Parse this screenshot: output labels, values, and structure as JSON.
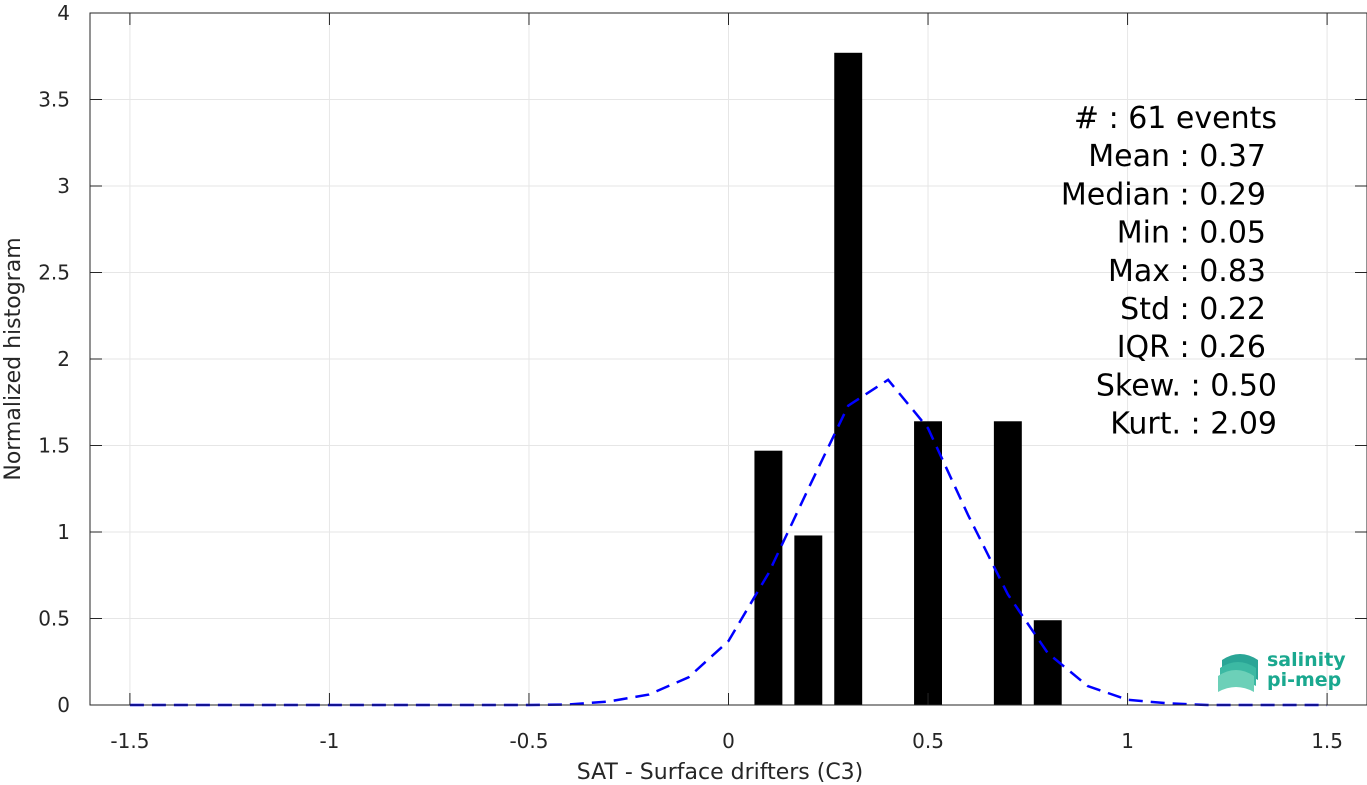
{
  "chart_data": {
    "type": "bar",
    "xlabel": "SAT - Surface drifters (C3)",
    "ylabel": "Normalized histogram",
    "xlim": [
      -1.6,
      1.6
    ],
    "ylim": [
      0,
      4
    ],
    "xticks": [
      -1.5,
      -1,
      -0.5,
      0,
      0.5,
      1,
      1.5
    ],
    "xtick_labels": [
      "-1.5",
      "-1",
      "-0.5",
      "0",
      "0.5",
      "1",
      "1.5"
    ],
    "yticks": [
      0,
      0.5,
      1,
      1.5,
      2,
      2.5,
      3,
      3.5,
      4
    ],
    "ytick_labels": [
      "0",
      "0.5",
      "1",
      "1.5",
      "2",
      "2.5",
      "3",
      "3.5",
      "4"
    ],
    "grid": true,
    "bar_color": "#000000",
    "bar_width": 0.07,
    "bars": [
      {
        "x": 0.1,
        "value": 1.47
      },
      {
        "x": 0.2,
        "value": 0.98
      },
      {
        "x": 0.3,
        "value": 3.77
      },
      {
        "x": 0.5,
        "value": 1.64
      },
      {
        "x": 0.7,
        "value": 1.64
      },
      {
        "x": 0.8,
        "value": 0.49
      }
    ],
    "fit_curve": {
      "style": "dashed",
      "color": "#0000ff",
      "x": [
        -1.5,
        -1.4,
        -1.3,
        -1.2,
        -1.1,
        -1.0,
        -0.9,
        -0.8,
        -0.7,
        -0.6,
        -0.5,
        -0.4,
        -0.3,
        -0.2,
        -0.1,
        0.0,
        0.1,
        0.2,
        0.3,
        0.4,
        0.5,
        0.6,
        0.7,
        0.8,
        0.9,
        1.0,
        1.1,
        1.2,
        1.3,
        1.4,
        1.5
      ],
      "y": [
        0,
        0,
        0,
        0,
        0,
        0,
        0,
        0,
        0,
        0,
        0,
        0.003,
        0.02,
        0.06,
        0.16,
        0.37,
        0.76,
        1.25,
        1.73,
        1.88,
        1.6,
        1.1,
        0.64,
        0.3,
        0.11,
        0.03,
        0.01,
        0,
        0,
        0,
        0
      ]
    },
    "stats": [
      {
        "label": "#  : 61 events"
      },
      {
        "label": "Mean : 0.37"
      },
      {
        "label": "Median : 0.29"
      },
      {
        "label": "Min : 0.05"
      },
      {
        "label": "Max : 0.83"
      },
      {
        "label": "Std : 0.22"
      },
      {
        "label": "IQR : 0.26"
      },
      {
        "label": "Skew. : 0.50"
      },
      {
        "label": "Kurt. : 2.09"
      }
    ]
  },
  "logo": {
    "line1": "salinity",
    "line2": "pi-mep"
  }
}
